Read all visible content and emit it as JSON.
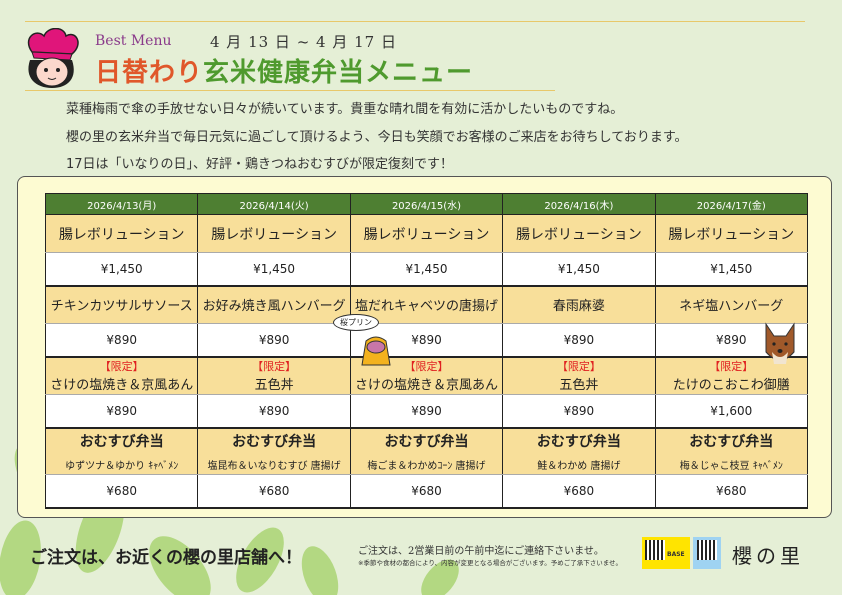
{
  "header": {
    "best_menu": "Best Menu",
    "dates": "4 月 13 日 ~ 4 月 17 日",
    "title_a": "日替わり",
    "title_b": "玄米健康弁当メニュー"
  },
  "intro": [
    "菜種梅雨で傘の手放せない日々が続いています。貴重な晴れ間を有効に活かしたいものですね。",
    "櫻の里の玄米弁当で毎日元気に過ごして頂けるよう、今日も笑顔でお客様のご来店をお待ちしております。",
    "17日は「いなりの日」、好評・鶏きつねおむすびが限定復刻です！"
  ],
  "table": {
    "days": [
      "2026/4/13(月)",
      "2026/4/14(火)",
      "2026/4/15(水)",
      "2026/4/16(木)",
      "2026/4/17(金)"
    ],
    "rows": [
      {
        "items": [
          {
            "name": "腸レボリューション"
          },
          {
            "name": "腸レボリューション"
          },
          {
            "name": "腸レボリューション"
          },
          {
            "name": "腸レボリューション"
          },
          {
            "name": "腸レボリューション"
          }
        ],
        "prices": [
          "¥1,450",
          "¥1,450",
          "¥1,450",
          "¥1,450",
          "¥1,450"
        ]
      },
      {
        "items": [
          {
            "name": "チキンカツサルサソース"
          },
          {
            "name": "お好み焼き風ハンバーグ"
          },
          {
            "name": "塩だれキャベツの唐揚げ"
          },
          {
            "name": "春雨麻婆"
          },
          {
            "name": "ネギ塩ハンバーグ"
          }
        ],
        "prices": [
          "¥890",
          "¥890",
          "¥890",
          "¥890",
          "¥890"
        ]
      },
      {
        "items": [
          {
            "tag": "【限定】",
            "name": "さけの塩焼き＆京風あん"
          },
          {
            "tag": "【限定】",
            "name": "五色丼"
          },
          {
            "tag": "【限定】",
            "name": "さけの塩焼き＆京風あん"
          },
          {
            "tag": "【限定】",
            "name": "五色丼"
          },
          {
            "tag": "【限定】",
            "name": "たけのこおこわ御膳"
          }
        ],
        "prices": [
          "¥890",
          "¥890",
          "¥890",
          "¥890",
          "¥1,600"
        ]
      },
      {
        "items": [
          {
            "name": "おむすび弁当",
            "sub": "ゆずツナ＆ゆかり ｷｬﾍﾞﾒﾝ"
          },
          {
            "name": "おむすび弁当",
            "sub": "塩昆布＆いなりむすび 唐揚げ"
          },
          {
            "name": "おむすび弁当",
            "sub": "梅ごま＆わかめｺｰﾝ 唐揚げ"
          },
          {
            "name": "おむすび弁当",
            "sub": "鮭＆わかめ 唐揚げ"
          },
          {
            "name": "おむすび弁当",
            "sub": "梅＆じゃこ枝豆 ｷｬﾍﾞﾒﾝ"
          }
        ],
        "prices": [
          "¥680",
          "¥680",
          "¥680",
          "¥680",
          "¥680"
        ]
      }
    ]
  },
  "bubble": "桜プリン",
  "footer": {
    "order": "ご注文は、お近くの櫻の里店舗へ！",
    "note1": "ご注文は、2営業日前の午前中迄にご連絡下さいませ。",
    "note2": "※季節や食材の都合により、内容が変更となる場合がございます。予めご了承下さいませ。",
    "qr1_label": "BASE",
    "brand": "櫻の里"
  },
  "colors": {
    "header_green": "#4e7f32",
    "cell_yellow": "#f8df9a",
    "title_orange": "#e0572a",
    "title_green": "#4f9a2e",
    "limited_red": "#e02020"
  }
}
